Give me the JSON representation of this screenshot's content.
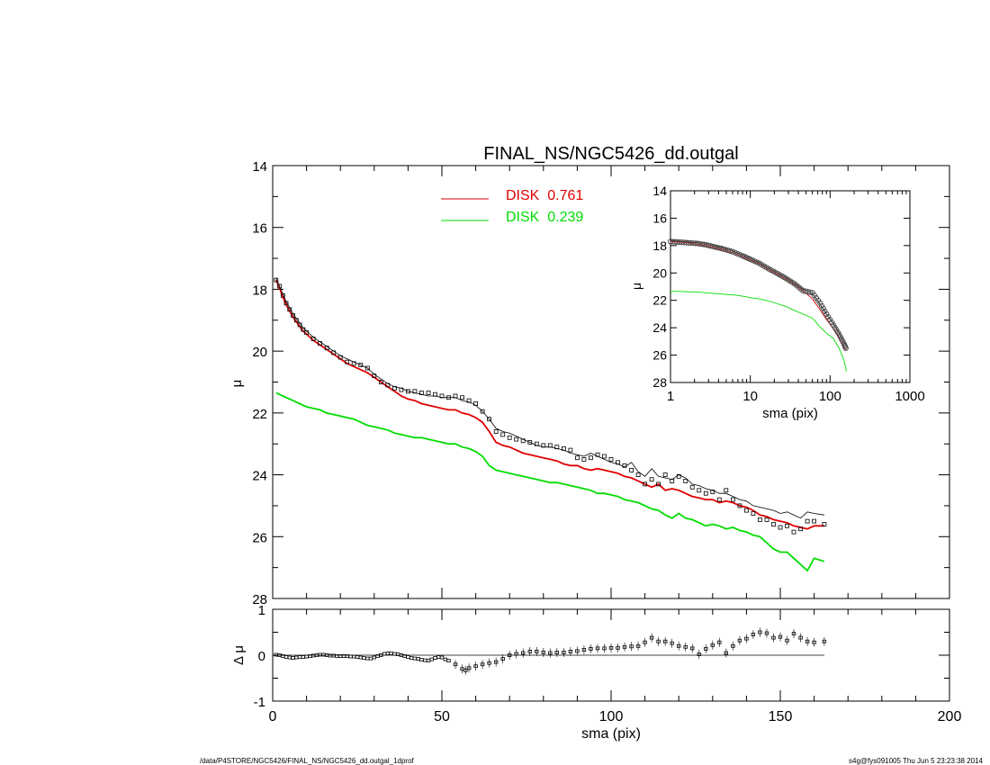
{
  "title": "FINAL_NS/NGC5426_dd.outgal",
  "footer": {
    "path": "/data/P4STORE/NGC5426/FINAL_NS/NGC5426_dd.outgal_1dprof",
    "stamp": "s4g@fys091005  Thu Jun  5 23:23:38 2014"
  },
  "colors": {
    "data": "#000000",
    "disk1": "#e00000",
    "disk2": "#00dd00",
    "total": "#000000"
  },
  "chart_data": [
    {
      "id": "main",
      "type": "line",
      "xlabel": "",
      "ylabel": "μ",
      "xlim": [
        0,
        200
      ],
      "ylim": [
        28,
        14
      ],
      "yticks": [
        "14",
        "16",
        "18",
        "20",
        "22",
        "24",
        "26",
        "28"
      ],
      "legend": [
        {
          "name": "DISK  0.761",
          "color": "#e00000"
        },
        {
          "name": "DISK  0.239",
          "color": "#00dd00"
        }
      ],
      "x": [
        1,
        2,
        3,
        4,
        5,
        6,
        7,
        8,
        9,
        10,
        12,
        14,
        16,
        18,
        20,
        22,
        24,
        26,
        28,
        30,
        32,
        34,
        36,
        38,
        40,
        42,
        44,
        46,
        48,
        50,
        52,
        54,
        56,
        58,
        60,
        62,
        64,
        66,
        68,
        70,
        72,
        74,
        76,
        78,
        80,
        82,
        84,
        86,
        88,
        90,
        92,
        94,
        96,
        98,
        100,
        102,
        104,
        106,
        108,
        110,
        112,
        114,
        116,
        118,
        120,
        122,
        124,
        126,
        128,
        130,
        132,
        134,
        136,
        138,
        140,
        142,
        144,
        146,
        148,
        150,
        152,
        154,
        156,
        158,
        160,
        163
      ],
      "series": [
        {
          "id": "observed",
          "values": [
            17.7,
            17.9,
            18.2,
            18.45,
            18.65,
            18.85,
            19.0,
            19.15,
            19.3,
            19.4,
            19.6,
            19.75,
            19.9,
            20.05,
            20.2,
            20.35,
            20.4,
            20.45,
            20.55,
            20.8,
            21.0,
            21.1,
            21.2,
            21.25,
            21.3,
            21.3,
            21.35,
            21.35,
            21.4,
            21.45,
            21.5,
            21.45,
            21.5,
            21.6,
            21.7,
            21.95,
            22.2,
            22.6,
            22.7,
            22.8,
            22.85,
            22.9,
            22.95,
            23.0,
            23.05,
            23.05,
            23.1,
            23.15,
            23.2,
            23.45,
            23.5,
            23.45,
            23.35,
            23.4,
            23.5,
            23.6,
            23.7,
            23.85,
            24.0,
            24.3,
            24.15,
            24.3,
            24.0,
            24.2,
            24.05,
            24.2,
            24.4,
            24.5,
            24.6,
            24.55,
            24.8,
            24.5,
            24.8,
            25.0,
            25.15,
            25.25,
            25.45,
            25.45,
            25.6,
            25.7,
            25.65,
            25.85,
            25.75,
            25.5,
            25.5,
            25.6
          ]
        },
        {
          "id": "total-model",
          "values": [
            17.65,
            17.9,
            18.15,
            18.4,
            18.6,
            18.8,
            18.95,
            19.1,
            19.25,
            19.35,
            19.55,
            19.7,
            19.85,
            20.0,
            20.15,
            20.25,
            20.35,
            20.45,
            20.55,
            20.75,
            20.9,
            21.05,
            21.15,
            21.2,
            21.3,
            21.35,
            21.4,
            21.45,
            21.45,
            21.5,
            21.5,
            21.5,
            21.6,
            21.65,
            21.75,
            21.95,
            22.2,
            22.5,
            22.6,
            22.65,
            22.75,
            22.85,
            22.95,
            23.05,
            23.1,
            23.1,
            23.15,
            23.2,
            23.3,
            23.35,
            23.4,
            23.3,
            23.4,
            23.5,
            23.6,
            23.65,
            23.75,
            23.6,
            23.9,
            24.05,
            23.8,
            24.05,
            24.1,
            24.15,
            24.0,
            24.1,
            24.3,
            24.35,
            24.45,
            24.5,
            24.6,
            24.6,
            24.7,
            24.8,
            24.85,
            25.0,
            25.05,
            25.1,
            25.15,
            25.25,
            25.2,
            25.3,
            25.4,
            25.2,
            25.25,
            25.3
          ]
        },
        {
          "id": "disk-0.761",
          "values": [
            17.7,
            17.95,
            18.25,
            18.5,
            18.7,
            18.9,
            19.05,
            19.2,
            19.35,
            19.45,
            19.65,
            19.8,
            19.95,
            20.1,
            20.25,
            20.4,
            20.5,
            20.6,
            20.7,
            20.85,
            21.0,
            21.15,
            21.3,
            21.45,
            21.55,
            21.6,
            21.7,
            21.75,
            21.8,
            21.85,
            21.9,
            21.9,
            22.0,
            22.05,
            22.15,
            22.3,
            22.6,
            22.95,
            23.05,
            23.1,
            23.2,
            23.3,
            23.35,
            23.4,
            23.45,
            23.5,
            23.55,
            23.65,
            23.7,
            23.7,
            23.8,
            23.85,
            23.8,
            23.85,
            23.9,
            23.95,
            24.05,
            24.1,
            24.2,
            24.3,
            24.4,
            24.3,
            24.5,
            24.45,
            24.5,
            24.6,
            24.7,
            24.75,
            24.8,
            24.8,
            24.9,
            24.85,
            24.9,
            25.0,
            25.05,
            25.15,
            25.3,
            25.35,
            25.45,
            25.5,
            25.55,
            25.65,
            25.7,
            25.75,
            25.65,
            25.65
          ]
        },
        {
          "id": "disk-0.239",
          "values": [
            21.35,
            21.4,
            21.45,
            21.5,
            21.55,
            21.6,
            21.65,
            21.7,
            21.75,
            21.8,
            21.85,
            21.9,
            22.0,
            22.05,
            22.1,
            22.15,
            22.2,
            22.3,
            22.4,
            22.45,
            22.5,
            22.55,
            22.65,
            22.7,
            22.75,
            22.8,
            22.8,
            22.85,
            22.9,
            22.95,
            23.0,
            23.0,
            23.1,
            23.15,
            23.25,
            23.4,
            23.7,
            23.85,
            23.9,
            23.95,
            24.0,
            24.05,
            24.1,
            24.15,
            24.2,
            24.25,
            24.25,
            24.3,
            24.35,
            24.4,
            24.45,
            24.5,
            24.6,
            24.6,
            24.65,
            24.7,
            24.8,
            24.85,
            24.9,
            25.0,
            25.1,
            25.15,
            25.3,
            25.4,
            25.25,
            25.4,
            25.45,
            25.55,
            25.65,
            25.6,
            25.65,
            25.75,
            25.7,
            25.8,
            25.85,
            25.95,
            26.0,
            26.2,
            26.4,
            26.5,
            26.5,
            26.7,
            26.9,
            27.1,
            26.7,
            26.8
          ]
        }
      ]
    },
    {
      "id": "residual",
      "type": "scatter",
      "xlabel": "sma (pix)",
      "ylabel": "Δ μ",
      "xlim": [
        0,
        200
      ],
      "ylim": [
        -1,
        1
      ],
      "xticks": [
        "0",
        "50",
        "100",
        "150",
        "200"
      ],
      "yticks": [
        "-1",
        "0",
        "1"
      ],
      "points": [
        [
          1,
          0.01
        ],
        [
          2,
          0.0
        ],
        [
          3,
          -0.02
        ],
        [
          4,
          -0.04
        ],
        [
          5,
          -0.05
        ],
        [
          6,
          -0.06
        ],
        [
          7,
          -0.05
        ],
        [
          8,
          -0.04
        ],
        [
          9,
          -0.04
        ],
        [
          10,
          -0.03
        ],
        [
          11,
          -0.02
        ],
        [
          12,
          -0.01
        ],
        [
          13,
          0.0
        ],
        [
          14,
          0.01
        ],
        [
          15,
          0.01
        ],
        [
          16,
          0.0
        ],
        [
          17,
          -0.01
        ],
        [
          18,
          -0.01
        ],
        [
          19,
          -0.02
        ],
        [
          20,
          -0.02
        ],
        [
          21,
          -0.02
        ],
        [
          22,
          -0.02
        ],
        [
          23,
          -0.03
        ],
        [
          24,
          -0.03
        ],
        [
          25,
          -0.04
        ],
        [
          26,
          -0.05
        ],
        [
          27,
          -0.06
        ],
        [
          28,
          -0.07
        ],
        [
          29,
          -0.07
        ],
        [
          30,
          -0.05
        ],
        [
          31,
          -0.02
        ],
        [
          32,
          0.0
        ],
        [
          33,
          0.03
        ],
        [
          34,
          0.04
        ],
        [
          35,
          0.04
        ],
        [
          36,
          0.03
        ],
        [
          37,
          0.02
        ],
        [
          38,
          0.0
        ],
        [
          39,
          -0.02
        ],
        [
          40,
          -0.04
        ],
        [
          41,
          -0.06
        ],
        [
          42,
          -0.07
        ],
        [
          43,
          -0.08
        ],
        [
          44,
          -0.1
        ],
        [
          45,
          -0.11
        ],
        [
          46,
          -0.12
        ],
        [
          47,
          -0.09
        ],
        [
          48,
          -0.06
        ],
        [
          49,
          -0.04
        ],
        [
          50,
          -0.05
        ],
        [
          51,
          -0.09
        ],
        [
          52,
          -0.12
        ],
        [
          54,
          -0.2
        ],
        [
          56,
          -0.3
        ],
        [
          57,
          -0.33
        ],
        [
          58,
          -0.28
        ],
        [
          60,
          -0.24
        ],
        [
          62,
          -0.2
        ],
        [
          64,
          -0.17
        ],
        [
          66,
          -0.15
        ],
        [
          68,
          -0.08
        ],
        [
          70,
          0.0
        ],
        [
          72,
          0.03
        ],
        [
          74,
          0.05
        ],
        [
          76,
          0.08
        ],
        [
          78,
          0.08
        ],
        [
          80,
          0.06
        ],
        [
          82,
          0.05
        ],
        [
          84,
          0.06
        ],
        [
          86,
          0.06
        ],
        [
          88,
          0.08
        ],
        [
          90,
          0.09
        ],
        [
          92,
          0.12
        ],
        [
          94,
          0.14
        ],
        [
          96,
          0.15
        ],
        [
          98,
          0.15
        ],
        [
          100,
          0.16
        ],
        [
          102,
          0.16
        ],
        [
          104,
          0.18
        ],
        [
          106,
          0.19
        ],
        [
          108,
          0.2
        ],
        [
          110,
          0.28
        ],
        [
          112,
          0.38
        ],
        [
          114,
          0.3
        ],
        [
          116,
          0.3
        ],
        [
          118,
          0.26
        ],
        [
          120,
          0.2
        ],
        [
          122,
          0.18
        ],
        [
          124,
          0.15
        ],
        [
          126,
          0.02
        ],
        [
          128,
          0.14
        ],
        [
          130,
          0.22
        ],
        [
          132,
          0.28
        ],
        [
          134,
          0.05
        ],
        [
          136,
          0.2
        ],
        [
          138,
          0.32
        ],
        [
          140,
          0.36
        ],
        [
          142,
          0.45
        ],
        [
          144,
          0.5
        ],
        [
          146,
          0.48
        ],
        [
          148,
          0.38
        ],
        [
          150,
          0.4
        ],
        [
          152,
          0.32
        ],
        [
          154,
          0.47
        ],
        [
          156,
          0.38
        ],
        [
          158,
          0.3
        ],
        [
          160,
          0.28
        ],
        [
          163,
          0.3
        ]
      ]
    },
    {
      "id": "inset",
      "type": "line",
      "xlabel": "sma (pix)",
      "ylabel": "μ",
      "xscale": "log",
      "xlim": [
        1,
        1000
      ],
      "ylim": [
        28,
        14
      ],
      "xticks": [
        "1",
        "10",
        "100",
        "1000"
      ],
      "yticks": [
        "14",
        "16",
        "18",
        "20",
        "22",
        "24",
        "26",
        "28"
      ],
      "series": [
        {
          "id": "observed-log",
          "x": [
            1,
            1.3,
            1.7,
            2.2,
            2.8,
            3.6,
            4.6,
            6,
            8,
            10,
            13,
            17,
            22,
            28,
            36,
            46,
            60,
            75,
            90,
            110,
            130,
            150,
            160
          ],
          "values": [
            17.7,
            17.75,
            17.8,
            17.85,
            17.95,
            18.1,
            18.25,
            18.45,
            18.75,
            19.0,
            19.3,
            19.7,
            20.05,
            20.4,
            20.8,
            21.3,
            21.45,
            22.2,
            23.0,
            23.8,
            24.5,
            25.2,
            25.6
          ]
        },
        {
          "id": "total-log",
          "x": [
            1,
            1.3,
            1.7,
            2.2,
            2.8,
            3.6,
            4.6,
            6,
            8,
            10,
            13,
            17,
            22,
            28,
            36,
            46,
            60,
            75,
            90,
            110,
            130,
            150,
            160
          ],
          "values": [
            17.65,
            17.7,
            17.75,
            17.8,
            17.9,
            18.05,
            18.2,
            18.4,
            18.7,
            18.95,
            19.25,
            19.65,
            20.0,
            20.35,
            20.75,
            21.2,
            21.5,
            22.3,
            23.0,
            23.7,
            24.4,
            25.1,
            25.3
          ]
        },
        {
          "id": "disk1-log",
          "x": [
            1,
            1.3,
            1.7,
            2.2,
            2.8,
            3.6,
            4.6,
            6,
            8,
            10,
            13,
            17,
            22,
            28,
            36,
            46,
            60,
            75,
            90,
            110,
            130,
            150,
            160
          ],
          "values": [
            17.7,
            17.75,
            17.8,
            17.9,
            18.0,
            18.15,
            18.3,
            18.5,
            18.8,
            19.05,
            19.35,
            19.75,
            20.1,
            20.45,
            20.85,
            21.3,
            21.9,
            22.7,
            23.4,
            24.1,
            24.7,
            25.4,
            25.65
          ]
        },
        {
          "id": "disk2-log",
          "x": [
            1,
            1.3,
            1.7,
            2.2,
            2.8,
            3.6,
            4.6,
            6,
            8,
            10,
            13,
            17,
            22,
            28,
            36,
            46,
            60,
            75,
            90,
            110,
            130,
            150,
            160
          ],
          "values": [
            21.35,
            21.35,
            21.38,
            21.4,
            21.45,
            21.5,
            21.55,
            21.6,
            21.7,
            21.8,
            21.9,
            22.05,
            22.25,
            22.45,
            22.75,
            23.0,
            23.3,
            23.95,
            24.4,
            24.8,
            25.5,
            26.4,
            27.2
          ]
        }
      ]
    }
  ]
}
